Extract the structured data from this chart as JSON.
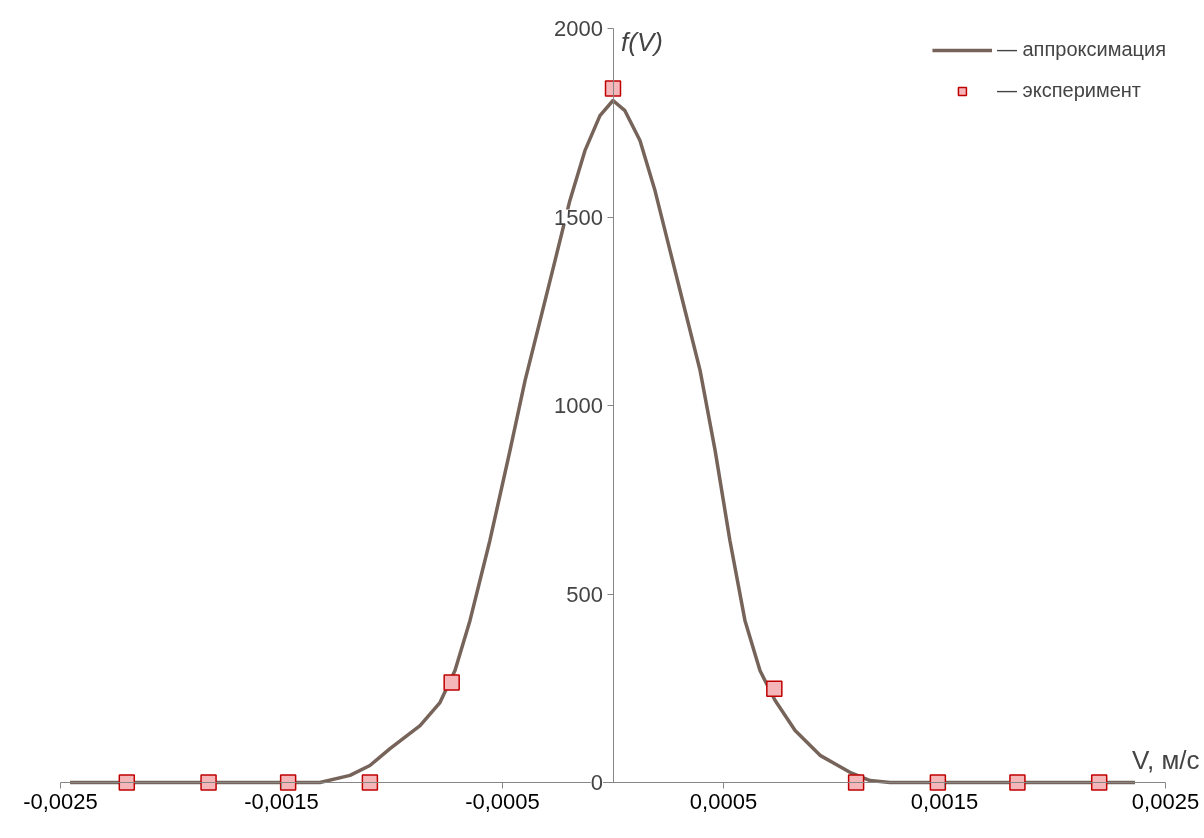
{
  "chart_data": {
    "type": "line",
    "xlabel": "V, м/с",
    "ylabel": "f(V)",
    "xlim": [
      -0.0025,
      0.0025
    ],
    "ylim": [
      0,
      2000
    ],
    "xticks": [
      {
        "value": -0.0025,
        "label": "-0,0025"
      },
      {
        "value": -0.0015,
        "label": "-0,0015"
      },
      {
        "value": -0.0005,
        "label": "-0,0005"
      },
      {
        "value": 0.0005,
        "label": "0,0005"
      },
      {
        "value": 0.0015,
        "label": "0,0015"
      },
      {
        "value": 0.0025,
        "label": "0,0025"
      }
    ],
    "yticks": [
      0,
      500,
      1000,
      1500,
      2000
    ],
    "grid": false,
    "legend": "top right",
    "series": [
      {
        "name": "— аппроксимация",
        "color": "#76645a",
        "marker": "none",
        "line_style": "solid",
        "x": [
          -0.002457,
          -0.001326,
          -0.00119,
          -0.0011,
          -0.001009,
          -0.000873,
          -0.000783,
          -0.000715,
          -0.000647,
          -0.000557,
          -0.000466,
          -0.000398,
          -0.00033,
          -0.000262,
          -0.000195,
          -0.000127,
          -5.9e-05,
          0,
          5.4e-05,
          0.000122,
          0.00019,
          0.000258,
          0.000326,
          0.000394,
          0.000462,
          0.000529,
          0.000597,
          0.000665,
          0.000733,
          0.000824,
          0.000937,
          0.001072,
          0.001163,
          0.001253,
          0.002362
        ],
        "values": [
          0,
          0,
          19,
          45,
          90,
          151,
          212,
          297,
          430,
          642,
          881,
          1066,
          1225,
          1385,
          1544,
          1676,
          1769,
          1809,
          1782,
          1703,
          1570,
          1411,
          1252,
          1093,
          881,
          642,
          430,
          297,
          218,
          138,
          72,
          27,
          5,
          0,
          0
        ]
      },
      {
        "name": "— эксперимент",
        "type": "scatter",
        "color": "#f4b6b8",
        "marker": "square",
        "x": [
          -0.0022,
          -0.00183,
          -0.00147,
          -0.0011,
          -0.00073,
          0,
          0.00073,
          0.0011,
          0.00147,
          0.00183,
          0.0022
        ],
        "values": [
          0,
          0,
          0,
          0,
          265,
          1841,
          249,
          0,
          0,
          0,
          0
        ]
      }
    ]
  }
}
